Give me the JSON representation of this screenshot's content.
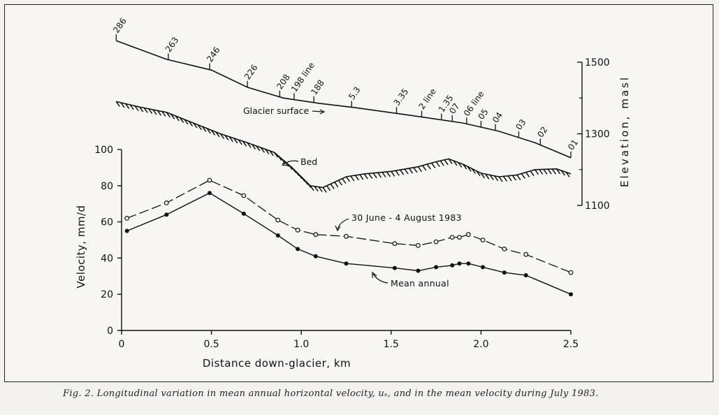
{
  "chart_data": {
    "type": "line",
    "x_axis": {
      "label": "Distance down-glacier, km",
      "range": [
        0,
        2.5
      ],
      "ticks": [
        0,
        0.5,
        1.0,
        1.5,
        2.0,
        2.5
      ],
      "tick_labels": [
        "0",
        "0.5",
        "1.0",
        "1.5",
        "2.0",
        "2.5"
      ]
    },
    "y_axis_left": {
      "label": "Velocity, mm/d",
      "range": [
        0,
        100
      ],
      "ticks": [
        0,
        20,
        40,
        60,
        80,
        100
      ],
      "tick_labels": [
        "0",
        "20",
        "40",
        "60",
        "80",
        "100"
      ]
    },
    "y_axis_right": {
      "label": "Elevation, masl",
      "range": [
        1100,
        1500
      ],
      "ticks": [
        1100,
        1300,
        1500
      ],
      "tick_labels": [
        "1100",
        "1300",
        "1500"
      ]
    },
    "series": [
      {
        "name": "30 June - 4 August 1983",
        "style": "dashed",
        "marker": "open-circle",
        "x": [
          0.03,
          0.25,
          0.49,
          0.68,
          0.87,
          0.98,
          1.08,
          1.25,
          1.52,
          1.65,
          1.75,
          1.84,
          1.88,
          1.93,
          2.01,
          2.13,
          2.25,
          2.5
        ],
        "y": [
          62,
          70.5,
          83,
          74.5,
          61,
          55.5,
          53,
          52,
          48,
          47,
          49,
          51.5,
          51.5,
          53,
          50,
          45,
          42,
          32
        ]
      },
      {
        "name": "Mean annual",
        "style": "solid",
        "marker": "filled-circle",
        "x": [
          0.03,
          0.25,
          0.49,
          0.68,
          0.87,
          0.98,
          1.08,
          1.25,
          1.52,
          1.65,
          1.75,
          1.84,
          1.88,
          1.93,
          2.01,
          2.13,
          2.25,
          2.5
        ],
        "y": [
          55,
          64,
          76,
          64.5,
          52.5,
          45,
          41,
          37,
          34.5,
          33,
          35,
          36,
          37,
          37,
          35,
          32,
          30.5,
          20
        ]
      },
      {
        "name": "Glacier surface",
        "axis": "right",
        "x": [
          -0.03,
          0.25,
          0.5,
          0.7,
          0.9,
          1.1,
          1.3,
          1.6,
          1.9,
          2.1,
          2.3,
          2.5
        ],
        "y": [
          1560,
          1508,
          1478,
          1430,
          1400,
          1385,
          1373,
          1352,
          1330,
          1307,
          1275,
          1233
        ]
      },
      {
        "name": "Bed",
        "axis": "right",
        "x": [
          -0.03,
          0.1,
          0.25,
          0.4,
          0.55,
          0.7,
          0.85,
          0.95,
          1.05,
          1.12,
          1.25,
          1.35,
          1.5,
          1.65,
          1.75,
          1.82,
          1.9,
          2.0,
          2.1,
          2.2,
          2.3,
          2.42,
          2.5
        ],
        "y": [
          1390,
          1375,
          1360,
          1330,
          1300,
          1275,
          1248,
          1205,
          1155,
          1150,
          1180,
          1188,
          1195,
          1208,
          1222,
          1230,
          1215,
          1190,
          1180,
          1185,
          1200,
          1202,
          1188
        ]
      }
    ],
    "stake_labels": [
      {
        "label": "286",
        "x": -0.03
      },
      {
        "label": "263",
        "x": 0.26
      },
      {
        "label": "246",
        "x": 0.49
      },
      {
        "label": "226",
        "x": 0.7
      },
      {
        "label": "208",
        "x": 0.88
      },
      {
        "label": "198 line",
        "x": 0.96
      },
      {
        "label": "188",
        "x": 1.07
      },
      {
        "label": "5.3",
        "x": 1.28
      },
      {
        "label": "3.35",
        "x": 1.53
      },
      {
        "label": "2 line",
        "x": 1.67
      },
      {
        "label": "1.35",
        "x": 1.78
      },
      {
        "label": "07",
        "x": 1.84
      },
      {
        "label": "06 line",
        "x": 1.92
      },
      {
        "label": "05",
        "x": 2.0
      },
      {
        "label": "04",
        "x": 2.08
      },
      {
        "label": "03",
        "x": 2.21
      },
      {
        "label": "02",
        "x": 2.33
      },
      {
        "label": "01",
        "x": 2.5
      }
    ],
    "annotations": {
      "surface_label": "Glacier surface",
      "bed_label": "Bed",
      "summer_label": "30 June - 4 August 1983",
      "annual_label": "Mean annual"
    },
    "grid": false
  },
  "caption": "Fig. 2. Longitudinal variation in mean annual horizontal velocity, uₛ, and in the mean velocity during July 1983."
}
